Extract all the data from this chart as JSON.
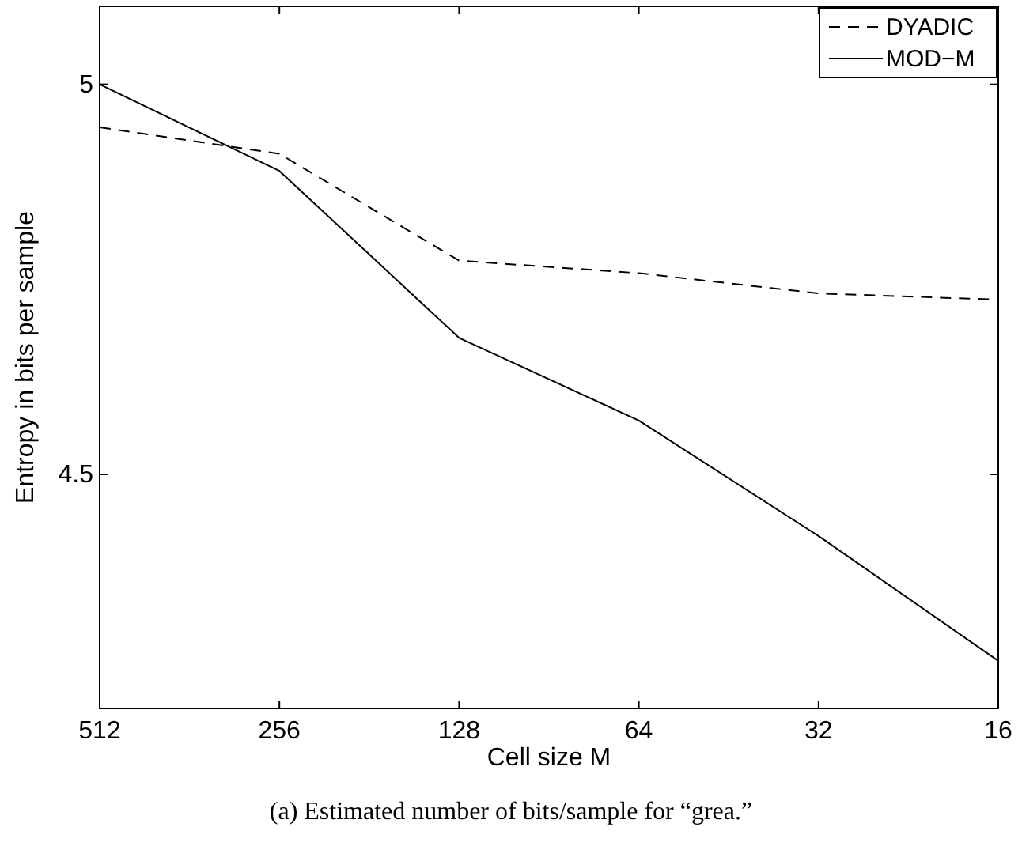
{
  "chart_data": {
    "type": "line",
    "xlabel": "Cell size M",
    "ylabel": "Entropy in bits per sample",
    "annotations": [
      "(a) Estimated number of bits/sample for “grea.”"
    ],
    "categories": [
      "512",
      "256",
      "128",
      "64",
      "32",
      "16"
    ],
    "series": [
      {
        "name": "DYADIC",
        "color": "#000000",
        "line_style": "dashed",
        "values": [
          4.945,
          4.911,
          4.774,
          4.758,
          4.732,
          4.724
        ]
      },
      {
        "name": "MOD−M",
        "color": "#000000",
        "line_style": "solid",
        "values": [
          5.0,
          4.889,
          4.675,
          4.569,
          4.421,
          4.261
        ]
      }
    ],
    "ylim": [
      4.2,
      5.1
    ],
    "yticks": [
      4.5,
      5
    ],
    "legend": "top right",
    "grid": false
  }
}
